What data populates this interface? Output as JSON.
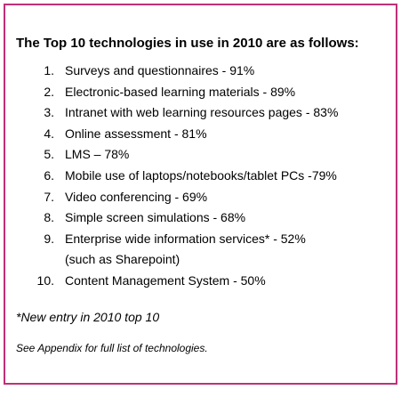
{
  "colors": {
    "border": "#c0307a",
    "text": "#000000",
    "background": "#ffffff"
  },
  "heading": "The Top 10 technologies in use in 2010 are as follows:",
  "items": [
    {
      "number": "1.",
      "text": "Surveys and questionnaires - 91%"
    },
    {
      "number": "2.",
      "text": "Electronic-based learning materials - 89%"
    },
    {
      "number": "3.",
      "text": "Intranet with web learning resources pages - 83%"
    },
    {
      "number": "4.",
      "text": "Online assessment - 81%"
    },
    {
      "number": "5.",
      "text": "LMS – 78%"
    },
    {
      "number": "6.",
      "text": "Mobile use of laptops/notebooks/tablet PCs -79%"
    },
    {
      "number": "7.",
      "text": "Video conferencing - 69%"
    },
    {
      "number": "8.",
      "text": "Simple screen simulations - 68%"
    },
    {
      "number": "9.",
      "text": "Enterprise wide information services* - 52%",
      "subtext": "(such as Sharepoint)"
    },
    {
      "number": "10.",
      "text": "Content Management System - 50%"
    }
  ],
  "note": "*New entry in 2010 top 10",
  "footnote": "See Appendix for full list of technologies."
}
